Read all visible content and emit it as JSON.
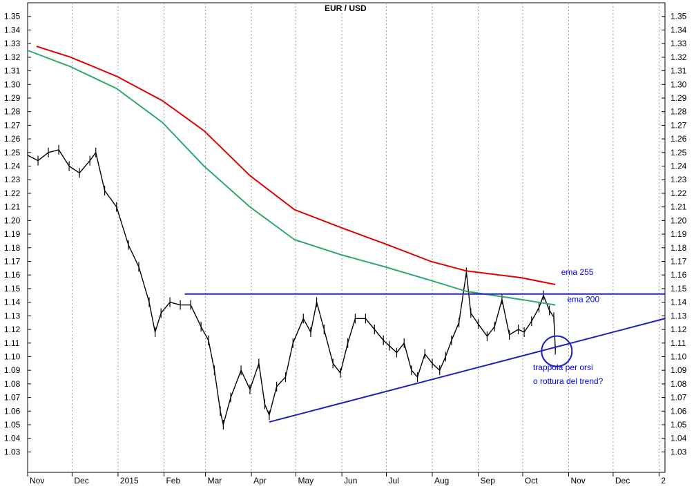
{
  "chart_data": {
    "type": "line",
    "title": "EUR / USD",
    "y_axis": {
      "ylim": [
        1.015,
        1.36
      ],
      "ticks": [
        "1.35",
        "1.34",
        "1.33",
        "1.32",
        "1.31",
        "1.30",
        "1.29",
        "1.28",
        "1.27",
        "1.26",
        "1.25",
        "1.24",
        "1.23",
        "1.22",
        "1.21",
        "1.20",
        "1.19",
        "1.18",
        "1.17",
        "1.16",
        "1.15",
        "1.14",
        "1.13",
        "1.12",
        "1.11",
        "1.10",
        "1.09",
        "1.08",
        "1.07",
        "1.06",
        "1.05",
        "1.04",
        "1.03"
      ],
      "position": "both",
      "grid": "vertical dotted only"
    },
    "x_axis": {
      "range": [
        "2014-11-01",
        "2016-01-05"
      ],
      "tick_labels": [
        {
          "label": "Nov",
          "date": "2014-11-01"
        },
        {
          "label": "Dec",
          "date": "2014-12-01"
        },
        {
          "label": "2015",
          "date": "2015-01-01"
        },
        {
          "label": "Feb",
          "date": "2015-02-01"
        },
        {
          "label": "Mar",
          "date": "2015-03-01"
        },
        {
          "label": "Apr",
          "date": "2015-04-01"
        },
        {
          "label": "May",
          "date": "2015-05-01"
        },
        {
          "label": "Jun",
          "date": "2015-06-01"
        },
        {
          "label": "Jul",
          "date": "2015-07-01"
        },
        {
          "label": "Aug",
          "date": "2015-08-01"
        },
        {
          "label": "Sep",
          "date": "2015-09-01"
        },
        {
          "label": "Oct",
          "date": "2015-10-01"
        },
        {
          "label": "Nov",
          "date": "2015-11-01"
        },
        {
          "label": "Dec",
          "date": "2015-12-01"
        },
        {
          "label": "2",
          "date": "2016-01-01"
        }
      ]
    },
    "series": [
      {
        "name": "EUR / USD",
        "type": "bar-ohlc",
        "color": "#000000",
        "points": [
          {
            "x": "2014-11-01",
            "y": 1.248
          },
          {
            "x": "2014-11-08",
            "y": 1.244
          },
          {
            "x": "2014-11-15",
            "y": 1.25
          },
          {
            "x": "2014-11-22",
            "y": 1.252
          },
          {
            "x": "2014-11-29",
            "y": 1.24
          },
          {
            "x": "2014-12-06",
            "y": 1.235
          },
          {
            "x": "2014-12-13",
            "y": 1.244
          },
          {
            "x": "2014-12-17",
            "y": 1.25
          },
          {
            "x": "2014-12-23",
            "y": 1.222
          },
          {
            "x": "2014-12-31",
            "y": 1.21
          },
          {
            "x": "2015-01-08",
            "y": 1.182
          },
          {
            "x": "2015-01-15",
            "y": 1.166
          },
          {
            "x": "2015-01-22",
            "y": 1.14
          },
          {
            "x": "2015-01-26",
            "y": 1.118
          },
          {
            "x": "2015-01-30",
            "y": 1.132
          },
          {
            "x": "2015-02-05",
            "y": 1.14
          },
          {
            "x": "2015-02-12",
            "y": 1.138
          },
          {
            "x": "2015-02-19",
            "y": 1.138
          },
          {
            "x": "2015-02-26",
            "y": 1.122
          },
          {
            "x": "2015-03-03",
            "y": 1.112
          },
          {
            "x": "2015-03-07",
            "y": 1.09
          },
          {
            "x": "2015-03-11",
            "y": 1.06
          },
          {
            "x": "2015-03-13",
            "y": 1.05
          },
          {
            "x": "2015-03-18",
            "y": 1.07
          },
          {
            "x": "2015-03-25",
            "y": 1.09
          },
          {
            "x": "2015-03-31",
            "y": 1.076
          },
          {
            "x": "2015-04-06",
            "y": 1.095
          },
          {
            "x": "2015-04-10",
            "y": 1.065
          },
          {
            "x": "2015-04-13",
            "y": 1.057
          },
          {
            "x": "2015-04-18",
            "y": 1.078
          },
          {
            "x": "2015-04-24",
            "y": 1.085
          },
          {
            "x": "2015-04-29",
            "y": 1.11
          },
          {
            "x": "2015-05-06",
            "y": 1.128
          },
          {
            "x": "2015-05-11",
            "y": 1.118
          },
          {
            "x": "2015-05-15",
            "y": 1.14
          },
          {
            "x": "2015-05-20",
            "y": 1.12
          },
          {
            "x": "2015-05-26",
            "y": 1.095
          },
          {
            "x": "2015-05-31",
            "y": 1.088
          },
          {
            "x": "2015-06-05",
            "y": 1.11
          },
          {
            "x": "2015-06-10",
            "y": 1.128
          },
          {
            "x": "2015-06-17",
            "y": 1.128
          },
          {
            "x": "2015-06-23",
            "y": 1.12
          },
          {
            "x": "2015-06-29",
            "y": 1.112
          },
          {
            "x": "2015-07-03",
            "y": 1.108
          },
          {
            "x": "2015-07-08",
            "y": 1.103
          },
          {
            "x": "2015-07-13",
            "y": 1.11
          },
          {
            "x": "2015-07-18",
            "y": 1.09
          },
          {
            "x": "2015-07-22",
            "y": 1.085
          },
          {
            "x": "2015-07-27",
            "y": 1.102
          },
          {
            "x": "2015-08-01",
            "y": 1.095
          },
          {
            "x": "2015-08-06",
            "y": 1.09
          },
          {
            "x": "2015-08-10",
            "y": 1.1
          },
          {
            "x": "2015-08-14",
            "y": 1.112
          },
          {
            "x": "2015-08-19",
            "y": 1.125
          },
          {
            "x": "2015-08-24",
            "y": 1.162
          },
          {
            "x": "2015-08-27",
            "y": 1.132
          },
          {
            "x": "2015-09-01",
            "y": 1.124
          },
          {
            "x": "2015-09-07",
            "y": 1.115
          },
          {
            "x": "2015-09-12",
            "y": 1.122
          },
          {
            "x": "2015-09-17",
            "y": 1.142
          },
          {
            "x": "2015-09-22",
            "y": 1.116
          },
          {
            "x": "2015-09-28",
            "y": 1.12
          },
          {
            "x": "2015-10-02",
            "y": 1.118
          },
          {
            "x": "2015-10-07",
            "y": 1.126
          },
          {
            "x": "2015-10-12",
            "y": 1.136
          },
          {
            "x": "2015-10-15",
            "y": 1.145
          },
          {
            "x": "2015-10-19",
            "y": 1.134
          },
          {
            "x": "2015-10-22",
            "y": 1.129
          },
          {
            "x": "2015-10-23",
            "y": 1.105
          }
        ]
      },
      {
        "name": "ema 255",
        "color": "#e00000",
        "points": [
          {
            "x": "2014-11-07",
            "y": 1.328
          },
          {
            "x": "2014-11-30",
            "y": 1.32
          },
          {
            "x": "2014-12-31",
            "y": 1.306
          },
          {
            "x": "2015-01-31",
            "y": 1.288
          },
          {
            "x": "2015-02-28",
            "y": 1.266
          },
          {
            "x": "2015-03-31",
            "y": 1.233
          },
          {
            "x": "2015-04-30",
            "y": 1.208
          },
          {
            "x": "2015-05-31",
            "y": 1.195
          },
          {
            "x": "2015-06-30",
            "y": 1.183
          },
          {
            "x": "2015-07-31",
            "y": 1.17
          },
          {
            "x": "2015-08-24",
            "y": 1.163
          },
          {
            "x": "2015-09-30",
            "y": 1.158
          },
          {
            "x": "2015-10-23",
            "y": 1.153
          }
        ]
      },
      {
        "name": "ema 200",
        "color": "#2ea86a",
        "points": [
          {
            "x": "2014-11-01",
            "y": 1.325
          },
          {
            "x": "2014-11-30",
            "y": 1.313
          },
          {
            "x": "2014-12-31",
            "y": 1.297
          },
          {
            "x": "2015-01-31",
            "y": 1.272
          },
          {
            "x": "2015-02-28",
            "y": 1.24
          },
          {
            "x": "2015-03-31",
            "y": 1.21
          },
          {
            "x": "2015-04-30",
            "y": 1.186
          },
          {
            "x": "2015-05-31",
            "y": 1.175
          },
          {
            "x": "2015-06-30",
            "y": 1.166
          },
          {
            "x": "2015-07-31",
            "y": 1.156
          },
          {
            "x": "2015-08-24",
            "y": 1.148
          },
          {
            "x": "2015-09-30",
            "y": 1.142
          },
          {
            "x": "2015-10-23",
            "y": 1.138
          }
        ]
      }
    ],
    "trendlines": [
      {
        "name": "resistance",
        "color": "#1f1fbf",
        "from": {
          "x": "2015-02-15",
          "y": 1.146
        },
        "to": {
          "x": "2016-01-05",
          "y": 1.146
        }
      },
      {
        "name": "support",
        "color": "#1f1fbf",
        "from": {
          "x": "2015-04-13",
          "y": 1.052
        },
        "to": {
          "x": "2016-01-05",
          "y": 1.128
        }
      }
    ],
    "highlight_circle": {
      "x": "2015-10-24",
      "y": 1.104
    },
    "annotations": [
      {
        "text": "ema 255",
        "x": "2015-10-27",
        "y": 1.16
      },
      {
        "text": "ema 200",
        "x": "2015-10-31",
        "y": 1.14
      },
      {
        "text": "trappola per orsi",
        "x": "2015-10-08",
        "y": 1.09
      },
      {
        "text": "o rottura del trend?",
        "x": "2015-10-08",
        "y": 1.08
      }
    ]
  }
}
